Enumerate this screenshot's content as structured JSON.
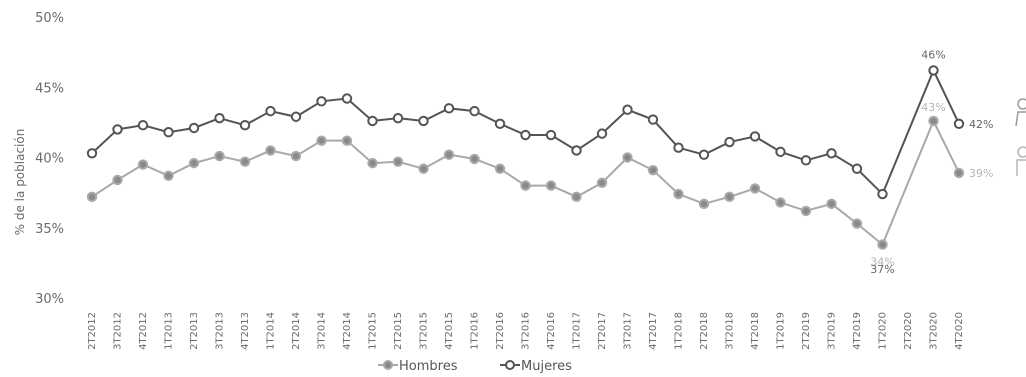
{
  "chart_data": {
    "type": "line",
    "ylabel": "% de la población",
    "ylim": [
      30,
      50
    ],
    "yticks": [
      30,
      35,
      40,
      45,
      50
    ],
    "ytick_labels": [
      "30%",
      "35%",
      "40%",
      "45%",
      "50%"
    ],
    "grid": false,
    "legend_position": "bottom",
    "categories": [
      "2T2012",
      "3T2012",
      "4T2012",
      "1T2013",
      "2T2013",
      "3T2013",
      "4T2013",
      "1T2014",
      "2T2014",
      "3T2014",
      "4T2014",
      "1T2015",
      "2T2015",
      "3T2015",
      "4T2015",
      "1T2016",
      "2T2016",
      "3T2016",
      "4T2016",
      "1T2017",
      "2T2017",
      "3T2017",
      "4T2017",
      "1T2018",
      "2T2018",
      "3T2018",
      "4T2018",
      "1T2019",
      "2T2019",
      "3T2019",
      "4T2019",
      "1T2020",
      "2T2020",
      "3T2020",
      "4T2020"
    ],
    "series": [
      {
        "name": "Hombres",
        "color": "#a9a9a9",
        "marker_fill": "#8a8a8a",
        "values": [
          37.2,
          38.4,
          39.5,
          38.7,
          39.6,
          40.1,
          39.7,
          40.5,
          40.1,
          41.2,
          41.2,
          39.6,
          39.7,
          39.2,
          40.2,
          39.9,
          39.2,
          38.0,
          38.0,
          37.2,
          38.2,
          40.0,
          39.1,
          37.4,
          36.7,
          37.2,
          37.8,
          36.8,
          36.2,
          36.7,
          35.3,
          33.8,
          null,
          42.6,
          38.9
        ],
        "data_labels": [
          {
            "category": "1T2020",
            "text": "34%"
          },
          {
            "category": "3T2020",
            "text": "43%"
          },
          {
            "category": "4T2020",
            "text": "39%"
          }
        ]
      },
      {
        "name": "Mujeres",
        "color": "#545454",
        "marker_fill": "#ffffff",
        "values": [
          40.3,
          42.0,
          42.3,
          41.8,
          42.1,
          42.8,
          42.3,
          43.3,
          42.9,
          44.0,
          44.2,
          42.6,
          42.8,
          42.6,
          43.5,
          43.3,
          42.4,
          41.6,
          41.6,
          40.5,
          41.7,
          43.4,
          42.7,
          40.7,
          40.2,
          41.1,
          41.5,
          40.4,
          39.8,
          40.3,
          39.2,
          37.4,
          null,
          46.2,
          42.4
        ],
        "data_labels": [
          {
            "category": "1T2020",
            "text": "37%"
          },
          {
            "category": "3T2020",
            "text": "46%"
          },
          {
            "category": "4T2020",
            "text": "42%"
          }
        ]
      }
    ]
  }
}
